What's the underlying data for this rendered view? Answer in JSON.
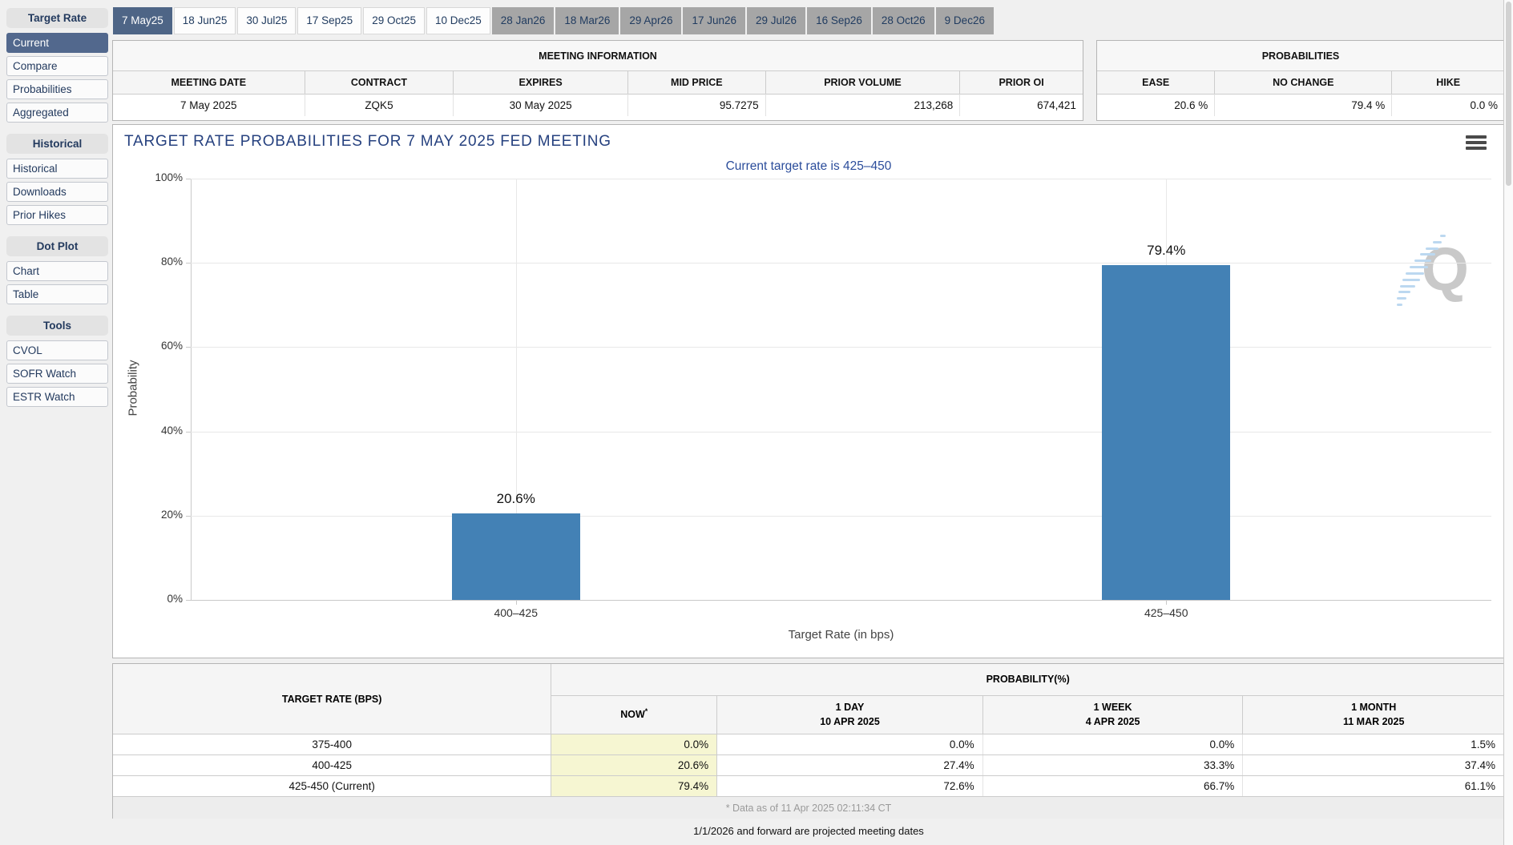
{
  "tabs": {
    "items": [
      {
        "label": "7 May25",
        "state": "selected"
      },
      {
        "label": "18 Jun25",
        "state": "normal"
      },
      {
        "label": "30 Jul25",
        "state": "normal"
      },
      {
        "label": "17 Sep25",
        "state": "normal"
      },
      {
        "label": "29 Oct25",
        "state": "normal"
      },
      {
        "label": "10 Dec25",
        "state": "normal"
      },
      {
        "label": "28 Jan26",
        "state": "projected"
      },
      {
        "label": "18 Mar26",
        "state": "projected"
      },
      {
        "label": "29 Apr26",
        "state": "projected"
      },
      {
        "label": "17 Jun26",
        "state": "projected"
      },
      {
        "label": "29 Jul26",
        "state": "projected"
      },
      {
        "label": "16 Sep26",
        "state": "projected"
      },
      {
        "label": "28 Oct26",
        "state": "projected"
      },
      {
        "label": "9 Dec26",
        "state": "projected"
      }
    ]
  },
  "sidebar": {
    "sections": [
      {
        "header": "Target Rate",
        "items": [
          {
            "label": "Current",
            "selected": true
          },
          {
            "label": "Compare",
            "selected": false
          },
          {
            "label": "Probabilities",
            "selected": false
          },
          {
            "label": "Aggregated",
            "selected": false
          }
        ]
      },
      {
        "header": "Historical",
        "items": [
          {
            "label": "Historical",
            "selected": false
          },
          {
            "label": "Downloads",
            "selected": false
          },
          {
            "label": "Prior Hikes",
            "selected": false
          }
        ]
      },
      {
        "header": "Dot Plot",
        "items": [
          {
            "label": "Chart",
            "selected": false
          },
          {
            "label": "Table",
            "selected": false
          }
        ]
      },
      {
        "header": "Tools",
        "items": [
          {
            "label": "CVOL",
            "selected": false
          },
          {
            "label": "SOFR Watch",
            "selected": false
          },
          {
            "label": "ESTR Watch",
            "selected": false
          }
        ]
      }
    ]
  },
  "meeting_info": {
    "title": "MEETING INFORMATION",
    "headers": [
      "MEETING DATE",
      "CONTRACT",
      "EXPIRES",
      "MID PRICE",
      "PRIOR VOLUME",
      "PRIOR OI"
    ],
    "row": [
      "7 May 2025",
      "ZQK5",
      "30 May 2025",
      "95.7275",
      "213,268",
      "674,421"
    ]
  },
  "probabilities_panel": {
    "title": "PROBABILITIES",
    "headers": [
      "EASE",
      "NO CHANGE",
      "HIKE"
    ],
    "values": [
      "20.6 %",
      "79.4 %",
      "0.0 %"
    ]
  },
  "chart_data": {
    "type": "bar",
    "title": "TARGET RATE PROBABILITIES FOR 7 MAY 2025 FED MEETING",
    "subtitle": "Current target rate is 425–450",
    "categories": [
      "400–425",
      "425–450"
    ],
    "values": [
      20.6,
      79.4
    ],
    "value_labels": [
      "20.6%",
      "79.4%"
    ],
    "xlabel": "Target Rate (in bps)",
    "ylabel": "Probability",
    "ylim": [
      0,
      100
    ],
    "yticks": [
      0,
      20,
      40,
      60,
      80,
      100
    ],
    "ytick_labels": [
      "0%",
      "20%",
      "40%",
      "60%",
      "80%",
      "100%"
    ],
    "bar_color": "#4381b5",
    "grid": true,
    "legend": false,
    "watermark_letter": "Q"
  },
  "prob_table": {
    "col1_header": "TARGET RATE (BPS)",
    "group_header": "PROBABILITY(%)",
    "now_header": "NOW",
    "now_asterisk": "*",
    "col_headers": [
      {
        "line1": "1 DAY",
        "line2": "10 APR 2025"
      },
      {
        "line1": "1 WEEK",
        "line2": "4 APR 2025"
      },
      {
        "line1": "1 MONTH",
        "line2": "11 MAR 2025"
      }
    ],
    "rows": [
      {
        "label": "375-400",
        "now": "0.0%",
        "day": "0.0%",
        "week": "0.0%",
        "month": "1.5%"
      },
      {
        "label": "400-425",
        "now": "20.6%",
        "day": "27.4%",
        "week": "33.3%",
        "month": "37.4%"
      },
      {
        "label": "425-450 (Current)",
        "now": "79.4%",
        "day": "72.6%",
        "week": "66.7%",
        "month": "61.1%"
      }
    ],
    "footnote": "* Data as of 11 Apr 2025 02:11:34 CT"
  },
  "footer_note": "1/1/2026 and forward are projected meeting dates",
  "colors": {
    "bar": "#4381b5",
    "selected_tab": "#4e6586",
    "selected_sidebar": "#52688d",
    "now_highlight": "#f6f6d2",
    "title_navy": "#26417f"
  }
}
